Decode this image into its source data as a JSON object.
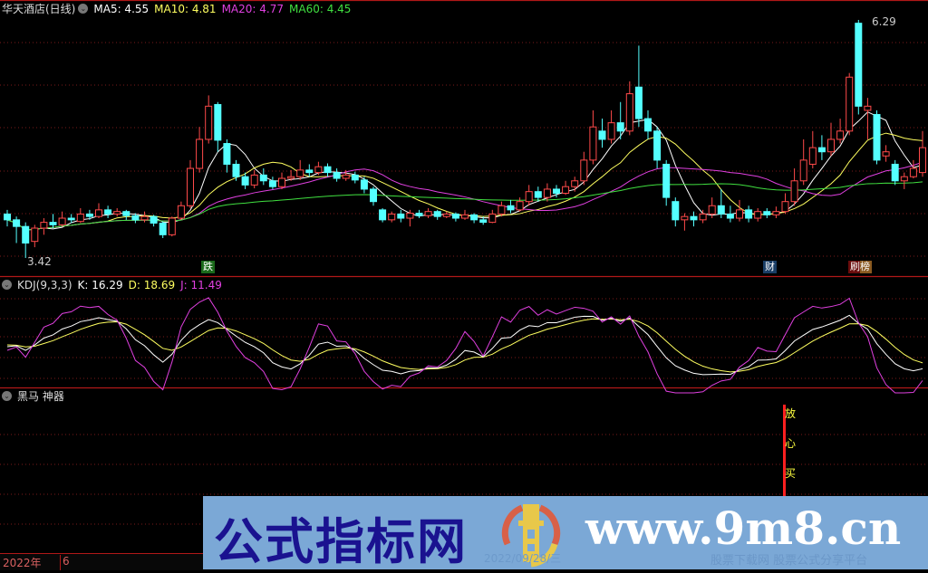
{
  "main_header": {
    "title": "华天酒店(日线)",
    "ma5": "MA5: 4.55",
    "ma10": "MA10: 4.81",
    "ma20": "MA20: 4.77",
    "ma60": "MA60: 4.45"
  },
  "price_labels": {
    "high": "6.29",
    "low": "3.42"
  },
  "signals": [
    {
      "text": "跌",
      "bg": "#1a6a1a",
      "color": "#ffffff"
    },
    {
      "text": "财",
      "bg": "#1a3e66",
      "color": "#ffffff"
    },
    {
      "text": "刷榜",
      "bg": "#7a2a10",
      "color": "#ffffff"
    }
  ],
  "kdj_header": {
    "title": "KDJ(9,3,3)",
    "k": "K: 16.29",
    "d": "D: 18.69",
    "j": "J: 11.49"
  },
  "heima_header": {
    "title": "黑马 神器"
  },
  "buy_signal": [
    "放",
    "心",
    "买"
  ],
  "time_axis": {
    "year": "2022年",
    "month": "6"
  },
  "watermark": {
    "title": "公式指标网",
    "url": "www.9m8.cn",
    "subtitle": "股票下载网  股票公式分享平台",
    "date": "2022/09/28/三",
    "logo_text": "www.9m8.cn"
  },
  "colors": {
    "up": "#ff4a4a",
    "down": "#54ffff",
    "ma5": "#ffffff",
    "ma10": "#ffff60",
    "ma20": "#e040e0",
    "ma60": "#40e040",
    "grid": "#7a1a1a",
    "divider": "#b01818"
  },
  "chart_data": {
    "type": "candlestick",
    "price_range": [
      3.42,
      6.29
    ],
    "ohlc": [
      [
        3.95,
        4.0,
        3.8,
        3.88
      ],
      [
        3.88,
        3.92,
        3.6,
        3.8
      ],
      [
        3.8,
        3.85,
        3.42,
        3.6
      ],
      [
        3.62,
        3.82,
        3.55,
        3.78
      ],
      [
        3.78,
        3.9,
        3.7,
        3.85
      ],
      [
        3.85,
        3.95,
        3.78,
        3.82
      ],
      [
        3.82,
        3.98,
        3.8,
        3.9
      ],
      [
        3.9,
        3.95,
        3.84,
        3.88
      ],
      [
        3.86,
        4.02,
        3.84,
        3.95
      ],
      [
        3.95,
        4.0,
        3.88,
        3.92
      ],
      [
        3.92,
        4.08,
        3.9,
        4.0
      ],
      [
        4.0,
        4.05,
        3.9,
        3.95
      ],
      [
        3.95,
        4.02,
        3.92,
        3.98
      ],
      [
        3.98,
        4.0,
        3.88,
        3.93
      ],
      [
        3.93,
        3.96,
        3.84,
        3.88
      ],
      [
        3.88,
        3.98,
        3.85,
        3.92
      ],
      [
        3.92,
        3.94,
        3.8,
        3.84
      ],
      [
        3.84,
        3.86,
        3.66,
        3.7
      ],
      [
        3.7,
        3.92,
        3.68,
        3.9
      ],
      [
        3.9,
        4.1,
        3.88,
        4.05
      ],
      [
        4.05,
        4.6,
        4.02,
        4.5
      ],
      [
        4.5,
        5.0,
        4.45,
        4.85
      ],
      [
        4.85,
        5.38,
        4.8,
        5.25
      ],
      [
        5.27,
        5.3,
        4.7,
        4.84
      ],
      [
        4.8,
        4.85,
        4.45,
        4.55
      ],
      [
        4.55,
        4.6,
        4.35,
        4.4
      ],
      [
        4.4,
        4.45,
        4.25,
        4.3
      ],
      [
        4.3,
        4.48,
        4.26,
        4.42
      ],
      [
        4.42,
        4.5,
        4.3,
        4.35
      ],
      [
        4.35,
        4.4,
        4.25,
        4.28
      ],
      [
        4.28,
        4.45,
        4.25,
        4.38
      ],
      [
        4.38,
        4.48,
        4.35,
        4.4
      ],
      [
        4.4,
        4.6,
        4.36,
        4.48
      ],
      [
        4.48,
        4.55,
        4.4,
        4.45
      ],
      [
        4.45,
        4.58,
        4.42,
        4.52
      ],
      [
        4.52,
        4.56,
        4.4,
        4.45
      ],
      [
        4.45,
        4.5,
        4.34,
        4.38
      ],
      [
        4.38,
        4.48,
        4.35,
        4.42
      ],
      [
        4.42,
        4.46,
        4.32,
        4.36
      ],
      [
        4.36,
        4.4,
        4.2,
        4.25
      ],
      [
        4.25,
        4.28,
        4.05,
        4.1
      ],
      [
        4.0,
        4.02,
        3.85,
        3.88
      ],
      [
        3.88,
        3.98,
        3.85,
        3.95
      ],
      [
        3.95,
        4.0,
        3.85,
        3.9
      ],
      [
        3.9,
        4.0,
        3.8,
        3.96
      ],
      [
        3.96,
        4.0,
        3.9,
        3.93
      ],
      [
        3.93,
        4.02,
        3.9,
        3.98
      ],
      [
        3.98,
        4.0,
        3.88,
        3.92
      ],
      [
        3.92,
        3.98,
        3.9,
        3.95
      ],
      [
        3.95,
        3.97,
        3.86,
        3.9
      ],
      [
        3.9,
        4.0,
        3.88,
        3.94
      ],
      [
        3.94,
        3.96,
        3.84,
        3.88
      ],
      [
        3.88,
        3.92,
        3.82,
        3.85
      ],
      [
        3.85,
        4.0,
        3.84,
        3.95
      ],
      [
        3.95,
        4.1,
        3.92,
        4.05
      ],
      [
        4.05,
        4.12,
        3.96,
        4.0
      ],
      [
        4.0,
        4.15,
        3.98,
        4.1
      ],
      [
        4.1,
        4.3,
        4.05,
        4.22
      ],
      [
        4.22,
        4.28,
        4.1,
        4.15
      ],
      [
        4.15,
        4.32,
        4.1,
        4.25
      ],
      [
        4.25,
        4.3,
        4.15,
        4.2
      ],
      [
        4.2,
        4.35,
        4.18,
        4.28
      ],
      [
        4.28,
        4.4,
        4.22,
        4.35
      ],
      [
        4.35,
        4.7,
        4.3,
        4.6
      ],
      [
        4.6,
        5.2,
        4.55,
        5.0
      ],
      [
        4.95,
        5.1,
        4.75,
        4.85
      ],
      [
        4.85,
        5.2,
        4.8,
        5.05
      ],
      [
        5.05,
        5.3,
        4.85,
        4.95
      ],
      [
        4.95,
        5.55,
        4.9,
        5.4
      ],
      [
        5.48,
        5.98,
        5.0,
        5.1
      ],
      [
        5.1,
        5.2,
        4.85,
        4.95
      ],
      [
        4.95,
        5.0,
        4.5,
        4.6
      ],
      [
        4.55,
        4.6,
        4.05,
        4.15
      ],
      [
        4.1,
        4.15,
        3.8,
        3.88
      ],
      [
        3.88,
        3.96,
        3.75,
        3.92
      ],
      [
        3.92,
        3.98,
        3.8,
        3.88
      ],
      [
        3.88,
        4.0,
        3.84,
        3.95
      ],
      [
        3.95,
        4.15,
        3.9,
        4.05
      ],
      [
        4.05,
        4.25,
        3.9,
        3.95
      ],
      [
        3.95,
        4.05,
        3.85,
        3.9
      ],
      [
        3.9,
        4.12,
        3.86,
        4.0
      ],
      [
        4.0,
        4.05,
        3.85,
        3.9
      ],
      [
        3.9,
        4.02,
        3.86,
        3.98
      ],
      [
        3.98,
        4.02,
        3.9,
        3.94
      ],
      [
        3.94,
        4.04,
        3.9,
        3.98
      ],
      [
        3.98,
        4.2,
        3.95,
        4.1
      ],
      [
        4.1,
        4.5,
        4.05,
        4.35
      ],
      [
        4.35,
        4.85,
        4.3,
        4.6
      ],
      [
        4.55,
        4.95,
        4.5,
        4.75
      ],
      [
        4.75,
        4.9,
        4.6,
        4.7
      ],
      [
        4.7,
        5.05,
        4.65,
        4.85
      ],
      [
        4.85,
        5.1,
        4.8,
        4.95
      ],
      [
        4.95,
        5.65,
        4.9,
        5.6
      ],
      [
        6.25,
        6.29,
        5.15,
        5.25
      ],
      [
        5.2,
        5.35,
        4.85,
        5.25
      ],
      [
        5.15,
        5.2,
        4.55,
        4.6
      ],
      [
        4.65,
        4.78,
        4.58,
        4.7
      ],
      [
        4.55,
        4.6,
        4.3,
        4.35
      ],
      [
        4.35,
        4.45,
        4.25,
        4.4
      ],
      [
        4.4,
        4.6,
        4.38,
        4.5
      ],
      [
        4.45,
        4.95,
        4.4,
        4.75
      ]
    ],
    "ma_periods": [
      5,
      10,
      20,
      60
    ],
    "kdj_params": [
      9,
      3,
      3
    ]
  }
}
